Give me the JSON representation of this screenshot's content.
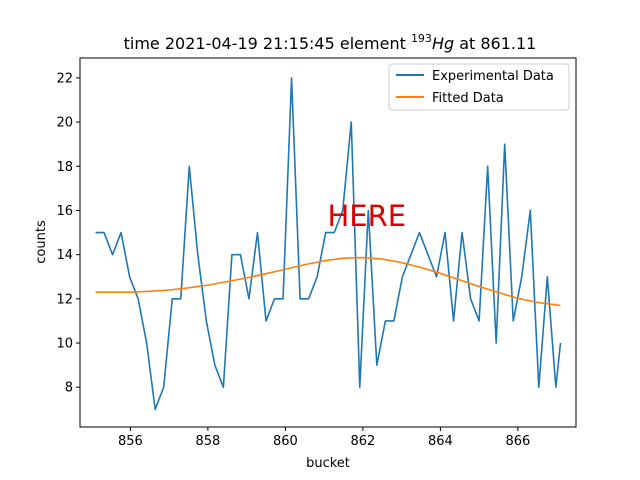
{
  "chart_data": {
    "type": "line",
    "title_parts": {
      "prefix": "time 2021-04-19 21:15:45 element ",
      "superscript": "193",
      "element": "Hg",
      "suffix": " at 861.11"
    },
    "xlabel": "bucket",
    "ylabel": "counts",
    "xlim": [
      854.7,
      867.5
    ],
    "ylim": [
      6.2,
      22.9
    ],
    "xticks": [
      856,
      858,
      860,
      862,
      864,
      866
    ],
    "yticks": [
      8,
      10,
      12,
      14,
      16,
      18,
      20,
      22
    ],
    "grid": false,
    "legend_position": "top-right",
    "annotation": {
      "text": "HERE",
      "x": 862.1,
      "y": 15.3,
      "color": "#e00000"
    },
    "series": [
      {
        "name": "Experimental Data",
        "color": "#1f77b4",
        "x": [
          855.1,
          855.32,
          855.54,
          855.76,
          855.98,
          856.2,
          856.42,
          856.64,
          856.86,
          857.08,
          857.3,
          857.52,
          857.74,
          857.96,
          858.18,
          858.4,
          858.62,
          858.84,
          859.06,
          859.28,
          859.5,
          859.72,
          859.94,
          860.16,
          860.38,
          860.6,
          860.82,
          861.04,
          861.26,
          861.48,
          861.7,
          861.92,
          862.14,
          862.36,
          862.58,
          862.8,
          863.02,
          863.24,
          863.46,
          863.68,
          863.9,
          864.12,
          864.34,
          864.56,
          864.78,
          865.0,
          865.22,
          865.44,
          865.66,
          865.88,
          866.1,
          866.32,
          866.54,
          866.76,
          866.98,
          867.1
        ],
        "values": [
          15,
          15,
          14,
          15,
          13,
          12,
          10,
          7,
          8,
          12,
          12,
          18,
          14,
          11,
          9,
          8,
          14,
          14,
          12,
          15,
          11,
          12,
          12,
          22,
          12,
          12,
          13,
          15,
          15,
          16,
          20,
          8,
          16,
          9,
          11,
          11,
          13,
          14,
          15,
          14,
          13,
          15,
          11,
          15,
          12,
          11,
          18,
          10,
          19,
          11,
          13,
          16,
          8,
          13,
          8,
          10
        ]
      },
      {
        "name": "Fitted Data",
        "color": "#ff7f0e",
        "x": [
          855.1,
          855.5,
          856.0,
          856.5,
          857.0,
          857.5,
          858.0,
          858.5,
          859.0,
          859.5,
          860.0,
          860.5,
          861.0,
          861.5,
          862.0,
          862.5,
          863.0,
          863.5,
          864.0,
          864.5,
          865.0,
          865.5,
          866.0,
          866.5,
          867.1
        ],
        "values": [
          12.3,
          12.3,
          12.3,
          12.34,
          12.4,
          12.5,
          12.62,
          12.78,
          12.95,
          13.14,
          13.34,
          13.55,
          13.72,
          13.84,
          13.87,
          13.8,
          13.64,
          13.42,
          13.15,
          12.86,
          12.56,
          12.28,
          12.02,
          11.84,
          11.7
        ]
      }
    ]
  }
}
